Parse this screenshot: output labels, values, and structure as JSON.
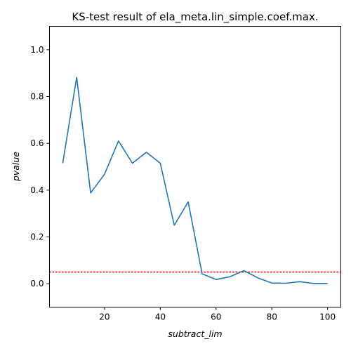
{
  "chart_data": {
    "type": "line",
    "title": "KS-test result of ela_meta.lin_simple.coef.max.",
    "xlabel": "subtract_lim",
    "ylabel": "pvalue",
    "xlim": [
      0.25,
      104.75
    ],
    "ylim": [
      -0.1,
      1.1
    ],
    "xticks": [
      20,
      40,
      60,
      80,
      100
    ],
    "xtick_labels": [
      "20",
      "40",
      "60",
      "80",
      "100"
    ],
    "yticks": [
      0.0,
      0.2,
      0.4,
      0.6,
      0.8,
      1.0
    ],
    "ytick_labels": [
      "0.0",
      "0.2",
      "0.4",
      "0.6",
      "0.8",
      "1.0"
    ],
    "grid": false,
    "series": [
      {
        "color": "#1f77b4",
        "x": [
          5,
          10,
          15,
          20,
          25,
          30,
          35,
          40,
          45,
          50,
          55,
          60,
          65,
          70,
          75,
          80,
          85,
          90,
          95,
          100
        ],
        "y": [
          0.515,
          0.882,
          0.388,
          0.468,
          0.61,
          0.515,
          0.562,
          0.515,
          0.25,
          0.35,
          0.042,
          0.018,
          0.03,
          0.056,
          0.025,
          0.003,
          0.002,
          0.009,
          0.001,
          0.001
        ]
      }
    ],
    "reference_line": {
      "y": 0.05,
      "style": "dotted",
      "color": "#ff0000"
    }
  }
}
